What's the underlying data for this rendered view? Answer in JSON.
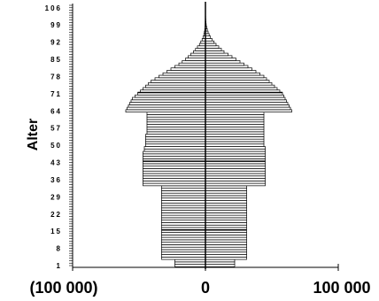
{
  "chart_data": {
    "type": "bar",
    "orientation": "horizontal",
    "ylabel": "Alter",
    "xlim": [
      -100000,
      100000
    ],
    "ylim": [
      1,
      107
    ],
    "y_ticks": [
      "1",
      "8",
      "15",
      "22",
      "29",
      "36",
      "43",
      "50",
      "57",
      "64",
      "71",
      "78",
      "85",
      "92",
      "99",
      "106"
    ],
    "x_ticks": [
      {
        "value": -100000,
        "label": "(100 000)"
      },
      {
        "value": 0,
        "label": "0"
      },
      {
        "value": 100000,
        "label": "100 000"
      }
    ],
    "series": [
      {
        "name": "",
        "side": "left",
        "ages": [
          1,
          2,
          3,
          4,
          5,
          6,
          7,
          8,
          9,
          10,
          11,
          12,
          13,
          14,
          15,
          16,
          17,
          18,
          19,
          20,
          21,
          22,
          23,
          24,
          25,
          26,
          27,
          28,
          29,
          30,
          31,
          32,
          33,
          34,
          35,
          36,
          37,
          38,
          39,
          40,
          41,
          42,
          43,
          44,
          45,
          46,
          47,
          48,
          49,
          50,
          51,
          52,
          53,
          54,
          55,
          56,
          57,
          58,
          59,
          60,
          61,
          62,
          63,
          64,
          65,
          66,
          67,
          68,
          69,
          70,
          71,
          72,
          73,
          74,
          75,
          76,
          77,
          78,
          79,
          80,
          81,
          82,
          83,
          84,
          85,
          86,
          87,
          88,
          89,
          90,
          91,
          92,
          93,
          94,
          95,
          96,
          97,
          98,
          99,
          100,
          101,
          102,
          103,
          104,
          105,
          106,
          107
        ],
        "values": [
          -23000,
          -23000,
          -23000,
          -33000,
          -33000,
          -33000,
          -33000,
          -33000,
          -33000,
          -33000,
          -33000,
          -33000,
          -33000,
          -33000,
          -33000,
          -33000,
          -33000,
          -33000,
          -33000,
          -33000,
          -33000,
          -33000,
          -33000,
          -33000,
          -33000,
          -33000,
          -33000,
          -33000,
          -33000,
          -33000,
          -33000,
          -33000,
          -33000,
          -47000,
          -47000,
          -47000,
          -47000,
          -47000,
          -47000,
          -47000,
          -47000,
          -47000,
          -47000,
          -47000,
          -47000,
          -47000,
          -47000,
          -46000,
          -46000,
          -45000,
          -45000,
          -45000,
          -45000,
          -45000,
          -44000,
          -44000,
          -44000,
          -44000,
          -44000,
          -44000,
          -44000,
          -44000,
          -44000,
          -60000,
          -59000,
          -58000,
          -57000,
          -56000,
          -55000,
          -53000,
          -51000,
          -49000,
          -47000,
          -45000,
          -43000,
          -41000,
          -38000,
          -35000,
          -32000,
          -29000,
          -26000,
          -23000,
          -20000,
          -17500,
          -15000,
          -13000,
          -11000,
          -9000,
          -7500,
          -6000,
          -4500,
          -3500,
          -2500,
          -1800,
          -1200,
          -800,
          -500,
          -300,
          -200,
          -150,
          -100,
          -80,
          -60,
          -40,
          -30,
          -20,
          -10
        ]
      },
      {
        "name": "",
        "side": "right",
        "ages": [
          1,
          2,
          3,
          4,
          5,
          6,
          7,
          8,
          9,
          10,
          11,
          12,
          13,
          14,
          15,
          16,
          17,
          18,
          19,
          20,
          21,
          22,
          23,
          24,
          25,
          26,
          27,
          28,
          29,
          30,
          31,
          32,
          33,
          34,
          35,
          36,
          37,
          38,
          39,
          40,
          41,
          42,
          43,
          44,
          45,
          46,
          47,
          48,
          49,
          50,
          51,
          52,
          53,
          54,
          55,
          56,
          57,
          58,
          59,
          60,
          61,
          62,
          63,
          64,
          65,
          66,
          67,
          68,
          69,
          70,
          71,
          72,
          73,
          74,
          75,
          76,
          77,
          78,
          79,
          80,
          81,
          82,
          83,
          84,
          85,
          86,
          87,
          88,
          89,
          90,
          91,
          92,
          93,
          94,
          95,
          96,
          97,
          98,
          99,
          100,
          101,
          102,
          103,
          104,
          105,
          106,
          107
        ],
        "values": [
          22000,
          22000,
          22000,
          31000,
          31000,
          31000,
          31000,
          31000,
          31000,
          31000,
          31000,
          31000,
          31000,
          31000,
          31000,
          31000,
          31000,
          31000,
          31000,
          31000,
          31000,
          31000,
          31000,
          31000,
          31000,
          31000,
          31000,
          31000,
          31000,
          31000,
          31000,
          31000,
          31000,
          45000,
          45000,
          45000,
          45000,
          45000,
          45000,
          45000,
          45000,
          45000,
          45000,
          45000,
          45000,
          45000,
          45000,
          45000,
          45000,
          44000,
          44000,
          44000,
          44000,
          44000,
          44000,
          44000,
          44000,
          44000,
          44000,
          44000,
          44000,
          44000,
          44000,
          65000,
          64000,
          63000,
          62000,
          61000,
          60000,
          59000,
          58000,
          56000,
          54000,
          52000,
          50000,
          48000,
          46000,
          44000,
          41000,
          38000,
          35000,
          32000,
          29000,
          26000,
          23000,
          20000,
          17000,
          14000,
          12000,
          10000,
          8000,
          6500,
          5000,
          3800,
          2800,
          2000,
          1400,
          900,
          600,
          400,
          250,
          150,
          80,
          50,
          30,
          20,
          10
        ]
      }
    ],
    "center_line": 0,
    "gridlines_horizontal_at": [
      15,
      43,
      71
    ]
  }
}
